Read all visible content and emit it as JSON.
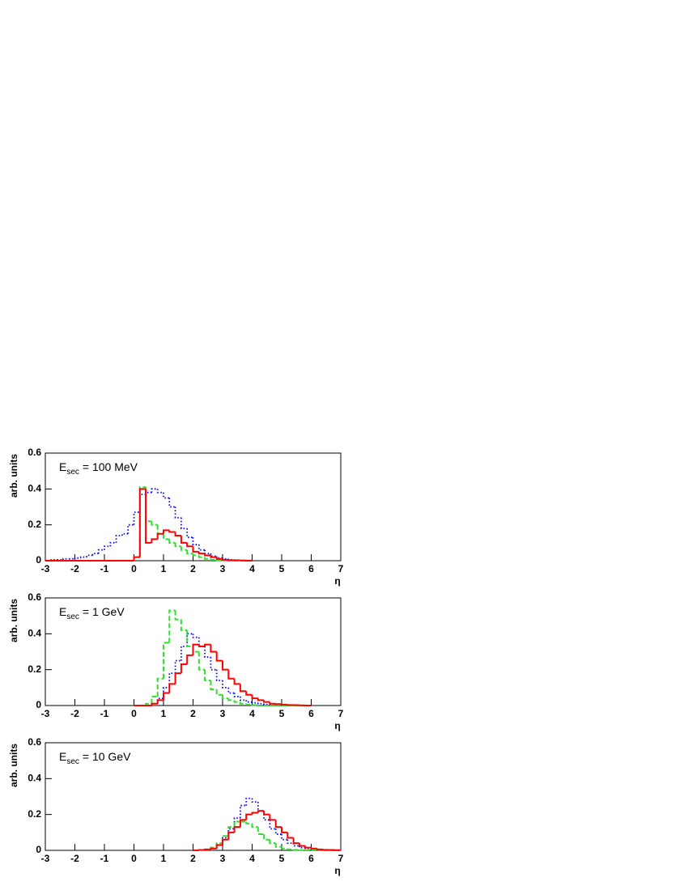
{
  "chart_data": [
    {
      "type": "histogram",
      "ylabel": "arb. units",
      "xlabel": "η",
      "annotation": {
        "main": "E",
        "sub": "sec",
        "rest": "= 100 MeV"
      },
      "xlim": [
        -3,
        7
      ],
      "ylim": [
        0,
        0.6
      ],
      "xticks": [
        -3,
        -2,
        -1,
        0,
        1,
        2,
        3,
        4,
        5,
        6,
        7
      ],
      "yticks": [
        0,
        0.2,
        0.4,
        0.6
      ],
      "bins": [
        -3,
        -2.8,
        -2.6,
        -2.4,
        -2.2,
        -2,
        -1.8,
        -1.6,
        -1.4,
        -1.2,
        -1,
        -0.8,
        -0.6,
        -0.4,
        -0.2,
        0,
        0.2,
        0.4,
        0.6,
        0.8,
        1,
        1.2,
        1.4,
        1.6,
        1.8,
        2,
        2.2,
        2.4,
        2.6,
        2.8,
        3,
        3.2,
        3.4,
        3.6,
        3.8,
        4
      ],
      "series": [
        {
          "color": "#0000ff",
          "style": "dotted",
          "values": [
            0,
            0.005,
            0.005,
            0.01,
            0.01,
            0.015,
            0.02,
            0.03,
            0.04,
            0.06,
            0.08,
            0.1,
            0.14,
            0.15,
            0.2,
            0.27,
            0.37,
            0.38,
            0.4,
            0.38,
            0.35,
            0.3,
            0.24,
            0.18,
            0.13,
            0.09,
            0.06,
            0.04,
            0.025,
            0.015,
            0.01,
            0.005,
            0.003,
            0.002,
            0.001
          ]
        },
        {
          "color": "#33dd33",
          "style": "dashed",
          "values": [
            0,
            0,
            0,
            0,
            0,
            0,
            0,
            0,
            0,
            0,
            0,
            0,
            0,
            0,
            0,
            0.02,
            0.41,
            0.22,
            0.2,
            0.15,
            0.12,
            0.1,
            0.08,
            0.06,
            0.04,
            0.03,
            0.02,
            0.01,
            0.005,
            0.003,
            0.002,
            0.001,
            0,
            0,
            0
          ]
        },
        {
          "color": "#ff0000",
          "style": "solid",
          "values": [
            0,
            0,
            0,
            0,
            0,
            0,
            0,
            0,
            0,
            0,
            0,
            0,
            0,
            0,
            0,
            0.02,
            0.4,
            0.1,
            0.12,
            0.15,
            0.17,
            0.16,
            0.14,
            0.1,
            0.08,
            0.05,
            0.04,
            0.03,
            0.02,
            0.01,
            0.005,
            0.003,
            0.002,
            0.001,
            0
          ]
        }
      ]
    },
    {
      "type": "histogram",
      "ylabel": "arb. units",
      "xlabel": "η",
      "annotation": {
        "main": "E",
        "sub": "sec",
        "rest": "= 1 GeV"
      },
      "xlim": [
        -3,
        7
      ],
      "ylim": [
        0,
        0.6
      ],
      "xticks": [
        -3,
        -2,
        -1,
        0,
        1,
        2,
        3,
        4,
        5,
        6,
        7
      ],
      "yticks": [
        0,
        0.2,
        0.4,
        0.6
      ],
      "bins": [
        0,
        0.2,
        0.4,
        0.6,
        0.8,
        1,
        1.2,
        1.4,
        1.6,
        1.8,
        2,
        2.2,
        2.4,
        2.6,
        2.8,
        3,
        3.2,
        3.4,
        3.6,
        3.8,
        4,
        4.2,
        4.4,
        4.6,
        4.8,
        5,
        5.2,
        5.4,
        5.6,
        5.8,
        6
      ],
      "series": [
        {
          "color": "#0000ff",
          "style": "dotted",
          "values": [
            0,
            0,
            0,
            0.01,
            0.04,
            0.1,
            0.18,
            0.25,
            0.33,
            0.4,
            0.38,
            0.33,
            0.27,
            0.2,
            0.14,
            0.1,
            0.07,
            0.05,
            0.03,
            0.02,
            0.015,
            0.01,
            0.005,
            0.003,
            0.002,
            0.001,
            0,
            0,
            0,
            0
          ]
        },
        {
          "color": "#33dd33",
          "style": "dashed",
          "values": [
            0,
            0,
            0.01,
            0.05,
            0.15,
            0.35,
            0.53,
            0.48,
            0.42,
            0.33,
            0.3,
            0.2,
            0.14,
            0.09,
            0.06,
            0.04,
            0.03,
            0.02,
            0.01,
            0.005,
            0.003,
            0,
            0,
            0,
            0,
            0,
            0,
            0,
            0,
            0
          ]
        },
        {
          "color": "#ff0000",
          "style": "solid",
          "values": [
            0,
            0,
            0,
            0.01,
            0.03,
            0.07,
            0.12,
            0.18,
            0.23,
            0.28,
            0.34,
            0.33,
            0.34,
            0.3,
            0.25,
            0.2,
            0.15,
            0.12,
            0.08,
            0.06,
            0.04,
            0.03,
            0.02,
            0.01,
            0.008,
            0.005,
            0.003,
            0.002,
            0.001,
            0
          ]
        }
      ]
    },
    {
      "type": "histogram",
      "ylabel": "arb. units",
      "xlabel": "η",
      "annotation": {
        "main": "E",
        "sub": "sec",
        "rest": "= 10 GeV"
      },
      "xlim": [
        -3,
        7
      ],
      "ylim": [
        0,
        0.6
      ],
      "xticks": [
        -3,
        -2,
        -1,
        0,
        1,
        2,
        3,
        4,
        5,
        6,
        7
      ],
      "yticks": [
        0,
        0.2,
        0.4,
        0.6
      ],
      "bins": [
        2,
        2.2,
        2.4,
        2.6,
        2.8,
        3,
        3.2,
        3.4,
        3.6,
        3.8,
        4,
        4.2,
        4.4,
        4.6,
        4.8,
        5,
        5.2,
        5.4,
        5.6,
        5.8,
        6,
        6.2,
        6.4,
        6.6,
        6.8,
        7
      ],
      "series": [
        {
          "color": "#0000ff",
          "style": "dotted",
          "values": [
            0,
            0.002,
            0.005,
            0.01,
            0.03,
            0.07,
            0.12,
            0.18,
            0.25,
            0.29,
            0.27,
            0.22,
            0.17,
            0.12,
            0.09,
            0.06,
            0.04,
            0.025,
            0.015,
            0.01,
            0.005,
            0.003,
            0.002,
            0.001,
            0
          ]
        },
        {
          "color": "#33dd33",
          "style": "dashed",
          "values": [
            0,
            0.002,
            0.005,
            0.015,
            0.04,
            0.08,
            0.13,
            0.16,
            0.16,
            0.15,
            0.13,
            0.09,
            0.06,
            0.04,
            0.02,
            0.01,
            0.005,
            0.003,
            0.001,
            0,
            0,
            0,
            0,
            0,
            0
          ]
        },
        {
          "color": "#ff0000",
          "style": "solid",
          "values": [
            0,
            0.002,
            0.005,
            0.01,
            0.03,
            0.06,
            0.1,
            0.13,
            0.17,
            0.2,
            0.21,
            0.22,
            0.2,
            0.17,
            0.13,
            0.1,
            0.07,
            0.04,
            0.025,
            0.015,
            0.01,
            0.005,
            0.003,
            0.002,
            0.001
          ]
        }
      ]
    }
  ]
}
